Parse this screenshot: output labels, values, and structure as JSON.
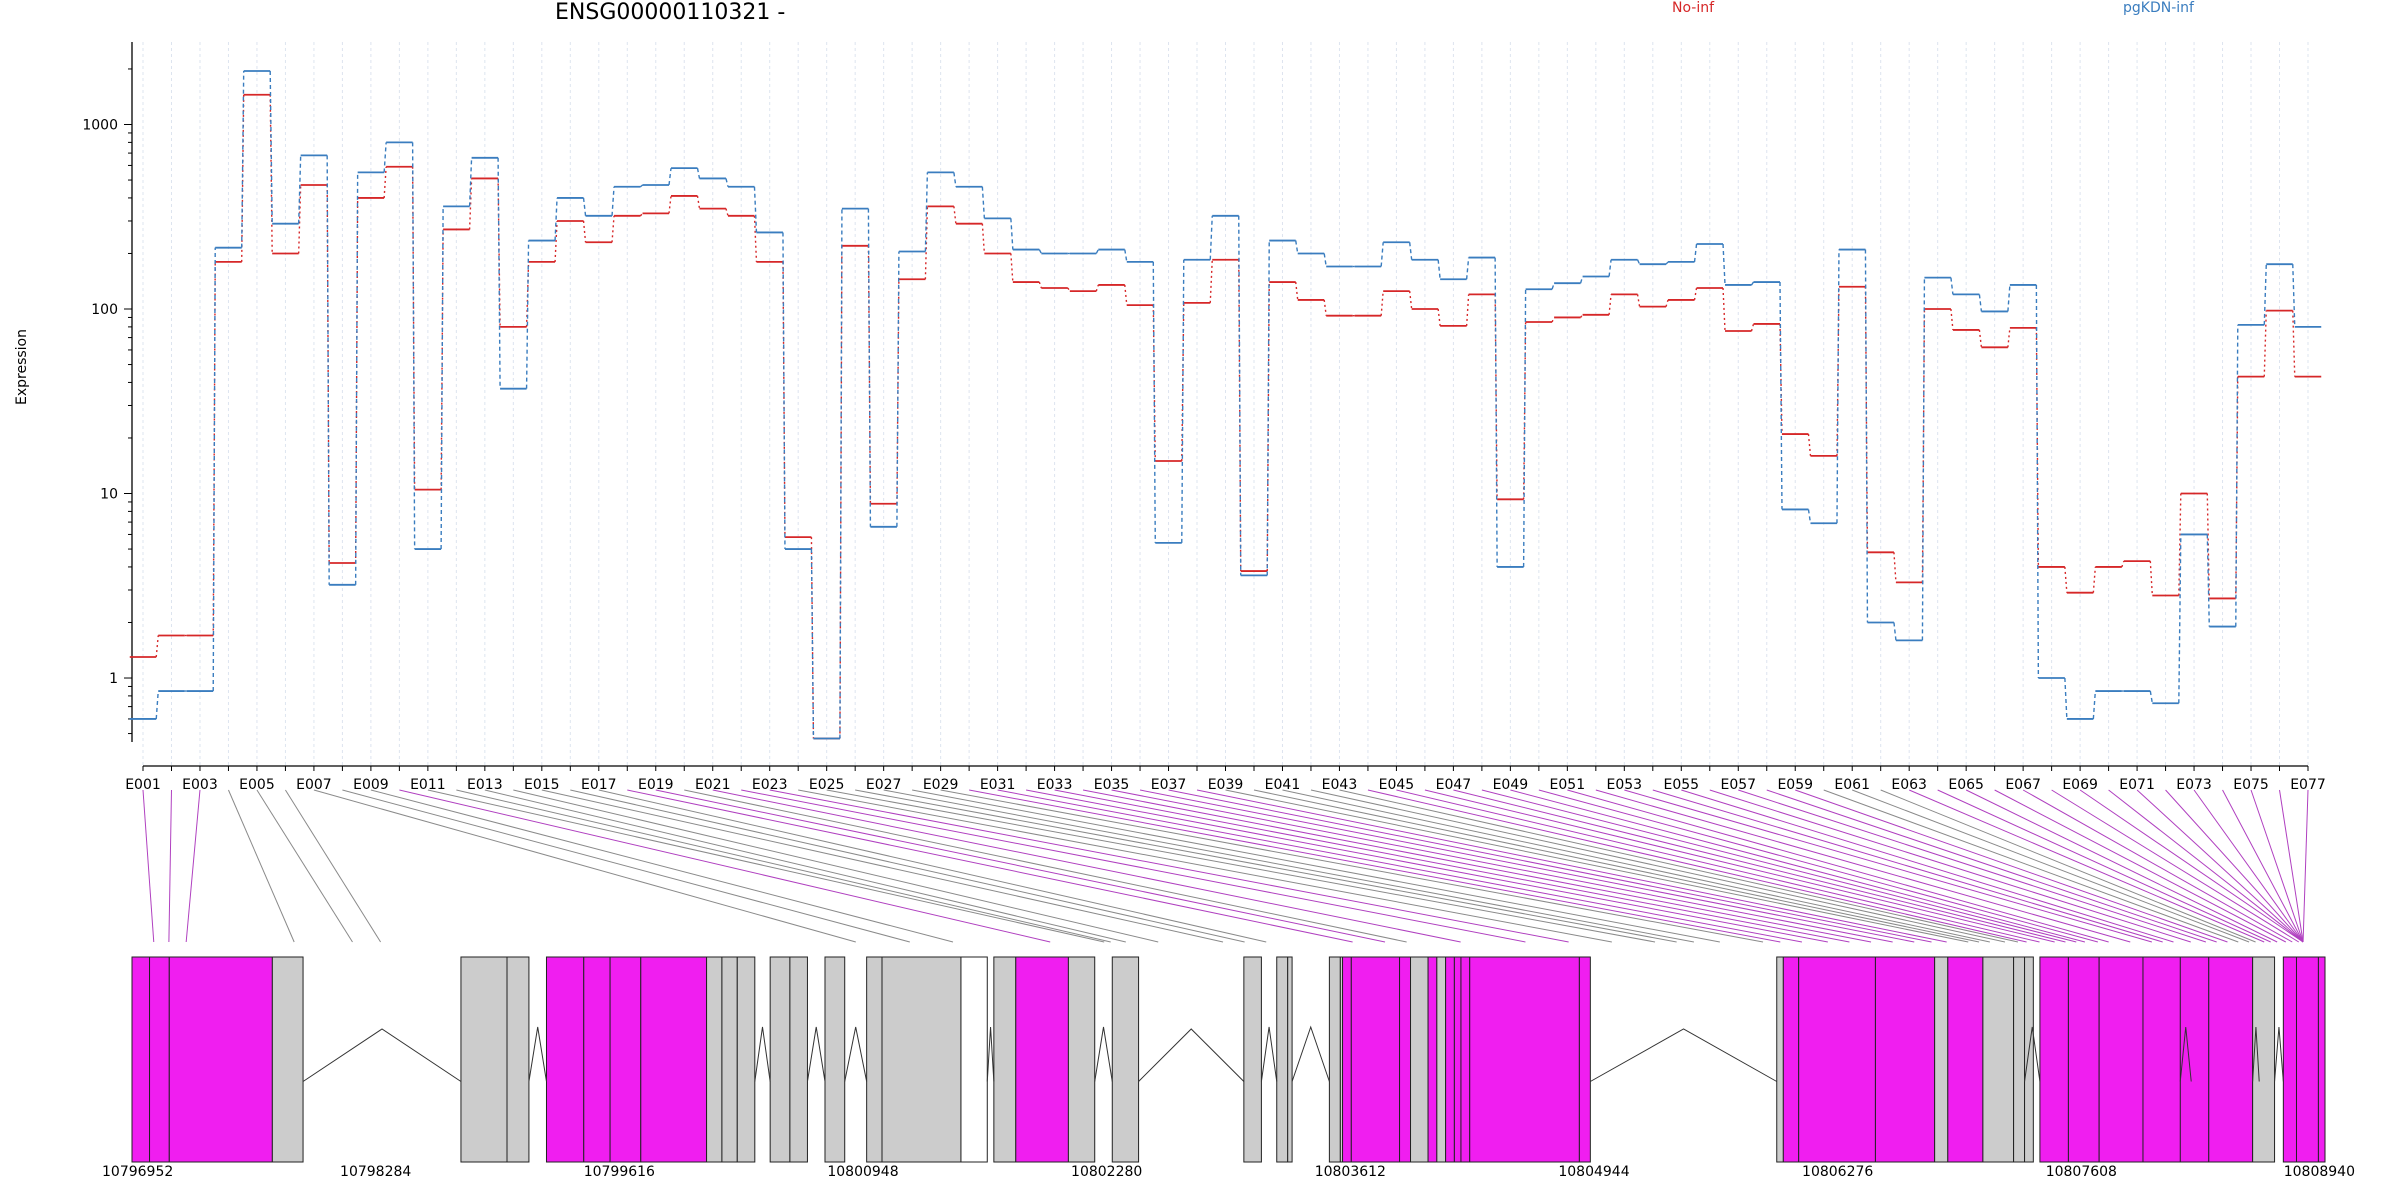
{
  "chart_data": {
    "type": "line",
    "title": "ENSG00000110321 -",
    "ylabel": "Expression",
    "y_scale": "log",
    "ylim": [
      0.45,
      2800
    ],
    "y_ticks": [
      1,
      10,
      100,
      1000
    ],
    "y_tick_labels": [
      "1",
      "10",
      "100",
      "1000"
    ],
    "grid": "vertical",
    "legend": "top",
    "categories": [
      "E001",
      "E002",
      "E003",
      "E004",
      "E005",
      "E006",
      "E007",
      "E008",
      "E009",
      "E010",
      "E011",
      "E012",
      "E013",
      "E014",
      "E015",
      "E016",
      "E017",
      "E018",
      "E019",
      "E020",
      "E021",
      "E022",
      "E023",
      "E024",
      "E025",
      "E026",
      "E027",
      "E028",
      "E029",
      "E030",
      "E031",
      "E032",
      "E033",
      "E034",
      "E035",
      "E036",
      "E037",
      "E038",
      "E039",
      "E040",
      "E041",
      "E042",
      "E043",
      "E044",
      "E045",
      "E046",
      "E047",
      "E048",
      "E049",
      "E050",
      "E051",
      "E052",
      "E053",
      "E054",
      "E055",
      "E056",
      "E057",
      "E058",
      "E059",
      "E060",
      "E061",
      "E062",
      "E063",
      "E064",
      "E065",
      "E066",
      "E067",
      "E068",
      "E069",
      "E070",
      "E071",
      "E072",
      "E073",
      "E074",
      "E075",
      "E076",
      "E077"
    ],
    "x_tick_labels": [
      "E001",
      "E003",
      "E005",
      "E007",
      "E009",
      "E011",
      "E013",
      "E015",
      "E017",
      "E019",
      "E021",
      "E023",
      "E025",
      "E027",
      "E029",
      "E031",
      "E033",
      "E035",
      "E037",
      "E039",
      "E041",
      "E043",
      "E045",
      "E047",
      "E049",
      "E051",
      "E053",
      "E055",
      "E057",
      "E059",
      "E061",
      "E063",
      "E065",
      "E067",
      "E069",
      "E071",
      "E073",
      "E075",
      "E077"
    ],
    "series": [
      {
        "name": "No-inf",
        "color": "#d62728",
        "line": "dotted",
        "values": [
          1.3,
          1.7,
          1.7,
          180,
          1450,
          200,
          470,
          4.2,
          400,
          590,
          10.5,
          270,
          510,
          80,
          180,
          300,
          230,
          320,
          330,
          410,
          350,
          320,
          180,
          5.8,
          0.47,
          220,
          8.8,
          145,
          360,
          290,
          200,
          140,
          130,
          125,
          135,
          105,
          15,
          108,
          185,
          3.8,
          140,
          112,
          92,
          92,
          125,
          100,
          81,
          120,
          9.3,
          85,
          90,
          93,
          120,
          103,
          112,
          130,
          76,
          83,
          21,
          16,
          132,
          4.8,
          3.3,
          100,
          77,
          62,
          79,
          4,
          2.9,
          4,
          4.3,
          2.8,
          10,
          2.7,
          43,
          98,
          43
        ]
      },
      {
        "name": "pgKDN-inf",
        "color": "#3a7dbf",
        "line": "dashed",
        "values": [
          0.6,
          0.85,
          0.85,
          215,
          1950,
          290,
          680,
          3.2,
          550,
          800,
          5,
          360,
          660,
          37,
          235,
          400,
          320,
          460,
          470,
          580,
          510,
          460,
          260,
          5,
          0.47,
          350,
          6.6,
          205,
          550,
          460,
          310,
          210,
          200,
          200,
          210,
          180,
          5.4,
          185,
          320,
          3.6,
          235,
          200,
          170,
          170,
          230,
          185,
          145,
          190,
          4,
          128,
          138,
          150,
          185,
          175,
          180,
          225,
          135,
          140,
          8.2,
          6.9,
          210,
          2,
          1.6,
          148,
          120,
          97,
          135,
          1,
          0.6,
          0.85,
          0.85,
          0.73,
          6,
          1.9,
          82,
          175,
          80
        ]
      }
    ],
    "gene_model": {
      "coordinate_labels": [
        "10796952",
        "10798284",
        "10799616",
        "10800948",
        "10802280",
        "10803612",
        "10804944",
        "10806276",
        "10807608",
        "10808940"
      ]
    }
  },
  "colors": {
    "no_inf": "#d62728",
    "pgkdn_inf": "#3a7dbf",
    "exon_highlight": "#f01ef0",
    "exon": "#cccccc"
  }
}
